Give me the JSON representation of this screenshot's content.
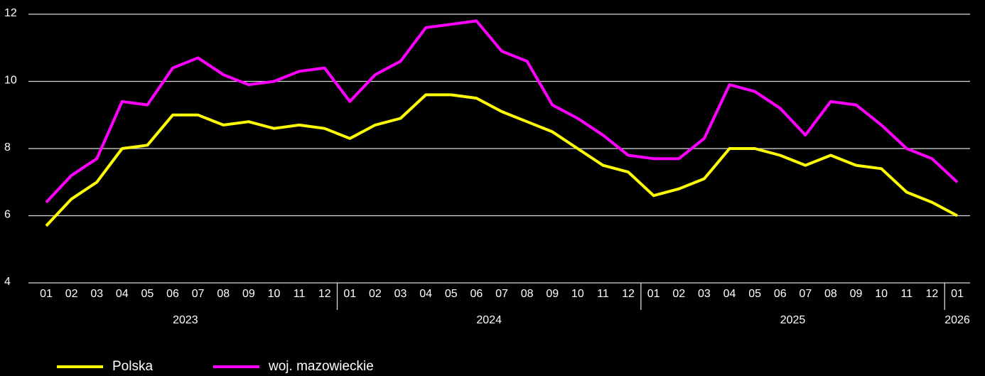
{
  "chart_data": {
    "type": "line",
    "categories": [
      "01",
      "02",
      "03",
      "04",
      "05",
      "06",
      "07",
      "08",
      "09",
      "10",
      "11",
      "12",
      "01",
      "02",
      "03",
      "04",
      "05",
      "06",
      "07",
      "08",
      "09",
      "10",
      "11",
      "12",
      "01",
      "02",
      "03",
      "04",
      "05",
      "06",
      "07",
      "08",
      "09",
      "10",
      "11",
      "12",
      "01"
    ],
    "groups": [
      "2023",
      "2024",
      "2025",
      "2026"
    ],
    "series": [
      {
        "name": "Polska",
        "color": "#ffff00",
        "values": [
          5.7,
          6.5,
          7.0,
          8.0,
          8.1,
          9.0,
          9.0,
          8.7,
          8.8,
          8.6,
          8.7,
          8.6,
          8.3,
          8.7,
          8.9,
          9.6,
          9.6,
          9.5,
          9.1,
          8.8,
          8.5,
          8.0,
          7.5,
          7.3,
          6.6,
          6.8,
          7.1,
          8.0,
          8.0,
          7.8,
          7.5,
          7.8,
          7.5,
          7.4,
          6.7,
          6.4,
          6.0
        ]
      },
      {
        "name": "woj. mazowieckie",
        "color": "#ff00ff",
        "values": [
          6.4,
          7.2,
          7.7,
          9.4,
          9.3,
          10.4,
          10.7,
          10.2,
          9.9,
          10.0,
          10.3,
          10.4,
          9.4,
          10.2,
          10.6,
          11.6,
          11.7,
          11.8,
          10.9,
          10.6,
          9.3,
          8.9,
          8.4,
          7.8,
          7.7,
          7.7,
          8.3,
          9.9,
          9.7,
          9.2,
          8.4,
          9.4,
          9.3,
          8.7,
          8.0,
          7.7,
          7.0
        ]
      }
    ],
    "ylim": [
      4,
      12
    ],
    "yticks": [
      4,
      6,
      8,
      10,
      12
    ],
    "grid": true,
    "legend": "bottom-left"
  }
}
